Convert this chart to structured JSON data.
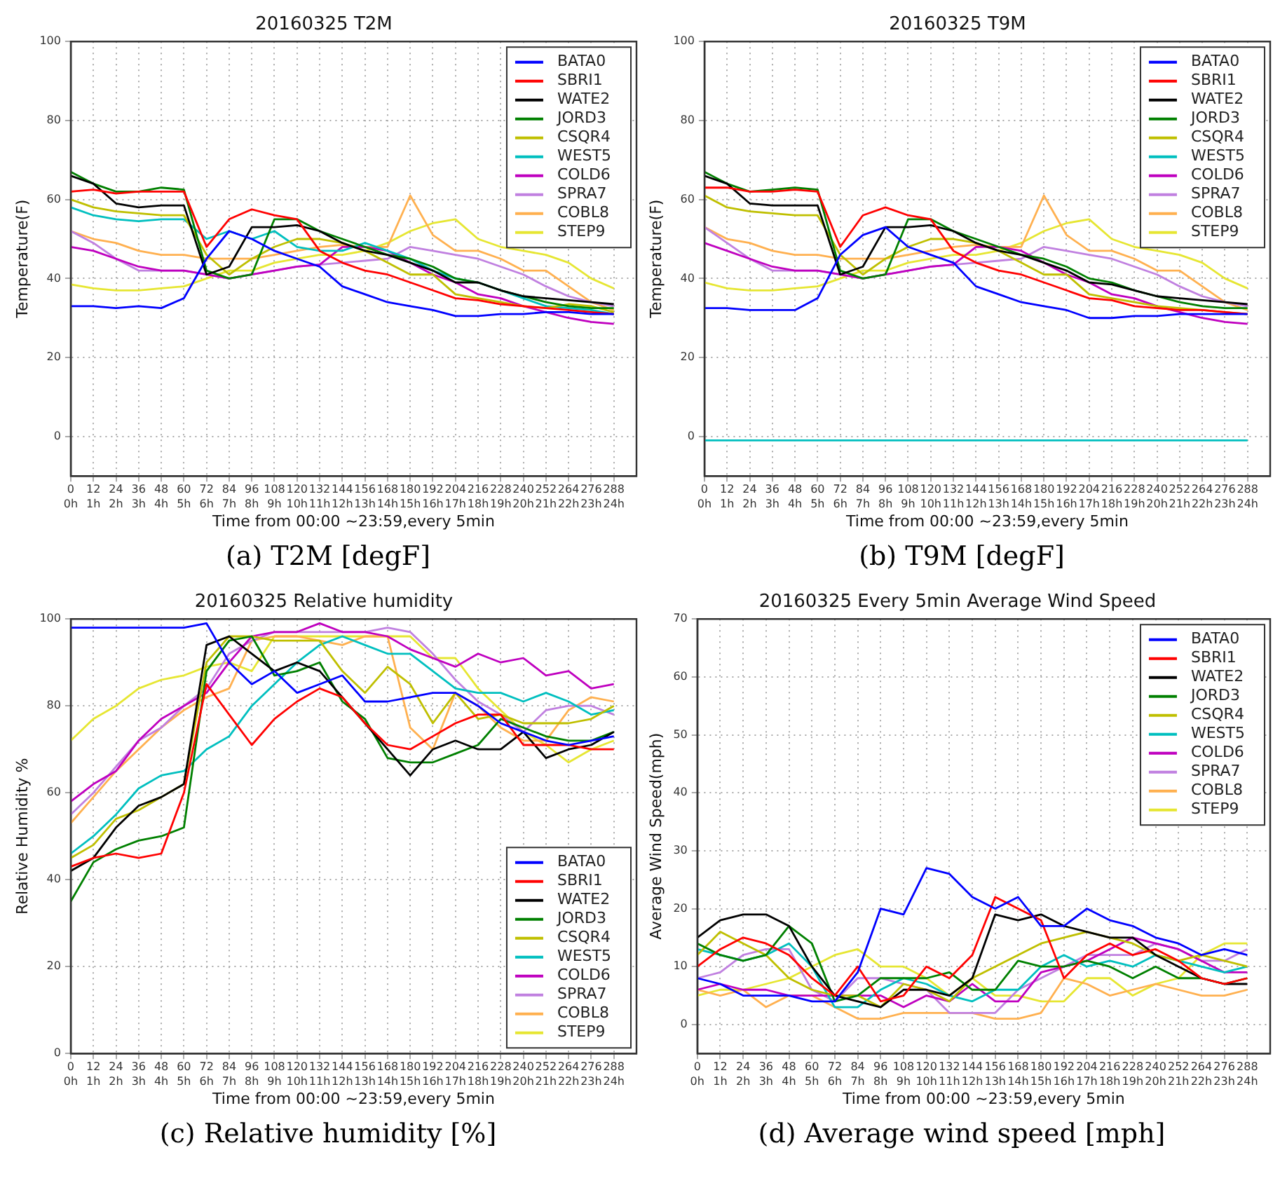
{
  "chart_data": [
    {
      "type": "line",
      "title": "20160325 T2M",
      "xlabel": "Time from 00:00 ~23:59,every 5min",
      "ylabel": "Temperature(F)",
      "annotations": [
        "(a) T2M [degF]"
      ],
      "legend": "top right",
      "grid": true,
      "xlim": [
        0,
        300
      ],
      "ylim": [
        -10,
        100
      ],
      "yticks": [
        0,
        20,
        40,
        60,
        80,
        100
      ],
      "xticks": [
        0,
        12,
        24,
        36,
        48,
        60,
        72,
        84,
        96,
        108,
        120,
        132,
        144,
        156,
        168,
        180,
        192,
        204,
        216,
        228,
        240,
        252,
        264,
        276,
        288
      ],
      "x2lim": [
        0,
        25
      ],
      "x2ticks": [
        {
          "value": 0,
          "label": "0h"
        },
        {
          "value": 1,
          "label": "1h"
        },
        {
          "value": 2,
          "label": "2h"
        },
        {
          "value": 3,
          "label": "3h"
        },
        {
          "value": 4,
          "label": "4h"
        },
        {
          "value": 5,
          "label": "5h"
        },
        {
          "value": 6,
          "label": "6h"
        },
        {
          "value": 7,
          "label": "7h"
        },
        {
          "value": 8,
          "label": "8h"
        },
        {
          "value": 9,
          "label": "9h"
        },
        {
          "value": 10,
          "label": "10h"
        },
        {
          "value": 11,
          "label": "11h"
        },
        {
          "value": 12,
          "label": "12h"
        },
        {
          "value": 13,
          "label": "13h"
        },
        {
          "value": 14,
          "label": "14h"
        },
        {
          "value": 15,
          "label": "15h"
        },
        {
          "value": 16,
          "label": "16h"
        },
        {
          "value": 17,
          "label": "17h"
        },
        {
          "value": 18,
          "label": "18h"
        },
        {
          "value": 19,
          "label": "19h"
        },
        {
          "value": 20,
          "label": "20h"
        },
        {
          "value": 21,
          "label": "21h"
        },
        {
          "value": 22,
          "label": "22h"
        },
        {
          "value": 23,
          "label": "23h"
        },
        {
          "value": 24,
          "label": "24h"
        }
      ],
      "x": [
        0,
        12,
        24,
        36,
        48,
        60,
        72,
        84,
        96,
        108,
        120,
        132,
        144,
        156,
        168,
        180,
        192,
        204,
        216,
        228,
        240,
        252,
        264,
        276,
        288
      ],
      "series": [
        {
          "name": "BATA0",
          "color": "#0000ff",
          "values": [
            33,
            33,
            32.5,
            33,
            32.5,
            35,
            45,
            52,
            50,
            47,
            45,
            43,
            38,
            36,
            34,
            33,
            32,
            30.5,
            30.5,
            31,
            31,
            31.5,
            31.5,
            31,
            31
          ]
        },
        {
          "name": "SBRI1",
          "color": "#ff0000",
          "values": [
            62,
            62.5,
            61.5,
            62,
            62,
            62,
            48,
            55,
            57.5,
            56,
            55,
            47,
            44,
            42,
            41,
            39,
            37,
            35,
            34.5,
            33.5,
            33,
            32.5,
            32,
            31.5,
            31
          ]
        },
        {
          "name": "WATE2",
          "color": "#000000",
          "values": [
            66,
            64,
            59,
            58,
            58.5,
            58.5,
            41,
            43,
            53,
            53,
            53.5,
            52,
            49,
            47,
            46,
            44,
            42,
            39,
            39,
            37,
            35.5,
            35,
            34.5,
            34,
            33.5
          ]
        },
        {
          "name": "JORD3",
          "color": "#008000",
          "values": [
            67,
            64,
            62,
            62,
            63,
            62.5,
            42,
            40,
            41,
            55,
            55,
            52,
            50,
            48,
            46,
            45,
            43,
            40,
            39,
            37,
            35.5,
            34,
            33,
            32.5,
            32.5
          ]
        },
        {
          "name": "CSQR4",
          "color": "#bfbf00",
          "values": [
            60,
            58,
            57,
            56.5,
            56,
            56,
            46,
            41,
            45,
            48,
            50,
            50,
            49,
            47,
            44,
            41,
            41,
            36,
            35,
            34,
            33,
            32.5,
            33.5,
            33,
            31.5
          ]
        },
        {
          "name": "WEST5",
          "color": "#00bfbf",
          "values": [
            58,
            56,
            55,
            54.5,
            55,
            55,
            50,
            52,
            50,
            52,
            48,
            47,
            47,
            49,
            47,
            45,
            42,
            40,
            39,
            37,
            35,
            33,
            32.5,
            32,
            31
          ]
        },
        {
          "name": "COLD6",
          "color": "#bf00bf",
          "values": [
            48,
            47,
            45,
            43,
            42,
            42,
            41,
            40,
            41,
            42,
            43,
            43.5,
            48,
            48,
            47,
            44,
            41,
            39,
            36,
            35,
            33,
            31.5,
            30,
            29,
            28.5
          ]
        },
        {
          "name": "SPRA7",
          "color": "#c080e0",
          "values": [
            52,
            49,
            45,
            42,
            42,
            42,
            41,
            40,
            41,
            42,
            43,
            43.5,
            44,
            44.5,
            45,
            48,
            47,
            46,
            45,
            43,
            41,
            38,
            35.5,
            34,
            33
          ]
        },
        {
          "name": "COBL8",
          "color": "#ffb04f",
          "values": [
            52,
            50,
            49,
            47,
            46,
            46,
            45,
            45,
            45,
            46,
            47,
            48,
            48.5,
            48,
            48,
            61,
            51,
            47,
            47,
            45,
            42,
            42,
            38,
            34,
            32
          ]
        },
        {
          "name": "STEP9",
          "color": "#e6e632",
          "values": [
            38.5,
            37.5,
            37,
            37,
            37.5,
            38,
            40,
            42,
            42,
            44,
            45,
            46,
            46,
            47,
            49,
            52,
            54,
            55,
            50,
            48,
            47,
            46,
            44,
            40,
            37.5
          ]
        }
      ]
    },
    {
      "type": "line",
      "title": "20160325 T9M",
      "xlabel": "Time from 00:00 ~23:59,every 5min",
      "ylabel": "Temperature(F)",
      "annotations": [
        "(b) T9M [degF]"
      ],
      "legend": "top right",
      "grid": true,
      "xlim": [
        0,
        300
      ],
      "ylim": [
        -10,
        100
      ],
      "yticks": [
        0,
        20,
        40,
        60,
        80,
        100
      ],
      "xticks": [
        0,
        12,
        24,
        36,
        48,
        60,
        72,
        84,
        96,
        108,
        120,
        132,
        144,
        156,
        168,
        180,
        192,
        204,
        216,
        228,
        240,
        252,
        264,
        276,
        288
      ],
      "x2lim": [
        0,
        25
      ],
      "x2ticks": [
        {
          "value": 0,
          "label": "0h"
        },
        {
          "value": 1,
          "label": "1h"
        },
        {
          "value": 2,
          "label": "2h"
        },
        {
          "value": 3,
          "label": "3h"
        },
        {
          "value": 4,
          "label": "4h"
        },
        {
          "value": 5,
          "label": "5h"
        },
        {
          "value": 6,
          "label": "6h"
        },
        {
          "value": 7,
          "label": "7h"
        },
        {
          "value": 8,
          "label": "8h"
        },
        {
          "value": 9,
          "label": "9h"
        },
        {
          "value": 10,
          "label": "10h"
        },
        {
          "value": 11,
          "label": "11h"
        },
        {
          "value": 12,
          "label": "12h"
        },
        {
          "value": 13,
          "label": "13h"
        },
        {
          "value": 14,
          "label": "14h"
        },
        {
          "value": 15,
          "label": "15h"
        },
        {
          "value": 16,
          "label": "16h"
        },
        {
          "value": 17,
          "label": "17h"
        },
        {
          "value": 18,
          "label": "18h"
        },
        {
          "value": 19,
          "label": "19h"
        },
        {
          "value": 20,
          "label": "20h"
        },
        {
          "value": 21,
          "label": "21h"
        },
        {
          "value": 22,
          "label": "22h"
        },
        {
          "value": 23,
          "label": "23h"
        },
        {
          "value": 24,
          "label": "24h"
        }
      ],
      "x": [
        0,
        12,
        24,
        36,
        48,
        60,
        72,
        84,
        96,
        108,
        120,
        132,
        144,
        156,
        168,
        180,
        192,
        204,
        216,
        228,
        240,
        252,
        264,
        276,
        288
      ],
      "series": [
        {
          "name": "BATA0",
          "color": "#0000ff",
          "values": [
            32.5,
            32.5,
            32,
            32,
            32,
            35,
            46,
            51,
            53,
            48,
            46,
            44,
            38,
            36,
            34,
            33,
            32,
            30,
            30,
            30.5,
            30.5,
            31,
            31,
            31,
            31
          ]
        },
        {
          "name": "SBRI1",
          "color": "#ff0000",
          "values": [
            63,
            63,
            62,
            62,
            62.5,
            62,
            48,
            56,
            58,
            56,
            55,
            47,
            44,
            42,
            41,
            39,
            37,
            35,
            34.5,
            33,
            32.5,
            32,
            32,
            31.5,
            31
          ]
        },
        {
          "name": "WATE2",
          "color": "#000000",
          "values": [
            66,
            64,
            59,
            58.5,
            58.5,
            58.5,
            41,
            43,
            53,
            53,
            53.5,
            52,
            49,
            47,
            46,
            44,
            42,
            39,
            38.5,
            37,
            35.5,
            35,
            34.5,
            34,
            33.5
          ]
        },
        {
          "name": "JORD3",
          "color": "#008000",
          "values": [
            67,
            64,
            62,
            62.5,
            63,
            62.5,
            42,
            40,
            41,
            55,
            55,
            52,
            50,
            48,
            46,
            45,
            43,
            40,
            39,
            37,
            35.5,
            34,
            33,
            32.5,
            32.5
          ]
        },
        {
          "name": "CSQR4",
          "color": "#bfbf00",
          "values": [
            61,
            58,
            57,
            56.5,
            56,
            56,
            46,
            41,
            45,
            48,
            50,
            50,
            49,
            47,
            44,
            41,
            41,
            36,
            35,
            34,
            33,
            32.5,
            32,
            31.5,
            31
          ]
        },
        {
          "name": "WEST5",
          "color": "#00bfbf",
          "values": [
            -1,
            -1,
            -1,
            -1,
            -1,
            -1,
            -1,
            -1,
            -1,
            -1,
            -1,
            -1,
            -1,
            -1,
            -1,
            -1,
            -1,
            -1,
            -1,
            -1,
            -1,
            -1,
            -1,
            -1,
            -1
          ]
        },
        {
          "name": "COLD6",
          "color": "#bf00bf",
          "values": [
            49,
            47,
            45,
            43,
            42,
            42,
            41,
            40,
            41,
            42,
            43,
            43.5,
            48,
            48,
            47,
            44,
            41,
            39,
            36,
            35,
            33,
            31.5,
            30,
            29,
            28.5
          ]
        },
        {
          "name": "SPRA7",
          "color": "#c080e0",
          "values": [
            53,
            49,
            45,
            42,
            42,
            42,
            41,
            40,
            41,
            42,
            43,
            43.5,
            44,
            44.5,
            45,
            48,
            47,
            46,
            45,
            43,
            41,
            38,
            35.5,
            34,
            33
          ]
        },
        {
          "name": "COBL8",
          "color": "#ffb04f",
          "values": [
            53,
            50,
            49,
            47,
            46,
            46,
            45,
            45,
            45,
            46,
            47,
            48,
            48.5,
            48,
            48,
            61,
            51,
            47,
            47,
            45,
            42,
            42,
            38,
            34,
            32
          ]
        },
        {
          "name": "STEP9",
          "color": "#e6e632",
          "values": [
            39,
            37.5,
            37,
            37,
            37.5,
            38,
            40,
            42,
            42,
            44,
            45,
            46,
            46,
            47,
            49,
            52,
            54,
            55,
            50,
            48,
            47,
            46,
            44,
            40,
            37.5
          ]
        }
      ]
    },
    {
      "type": "line",
      "title": "20160325 Relative humidity",
      "xlabel": "Time from 00:00 ~23:59,every 5min",
      "ylabel": "Relative Humidity %",
      "annotations": [
        "(c) Relative humidity [%]"
      ],
      "legend": "bottom right",
      "grid": true,
      "xlim": [
        0,
        300
      ],
      "ylim": [
        0,
        100
      ],
      "yticks": [
        0,
        20,
        40,
        60,
        80,
        100
      ],
      "xticks": [
        0,
        12,
        24,
        36,
        48,
        60,
        72,
        84,
        96,
        108,
        120,
        132,
        144,
        156,
        168,
        180,
        192,
        204,
        216,
        228,
        240,
        252,
        264,
        276,
        288
      ],
      "x2lim": [
        0,
        25
      ],
      "x2ticks": [
        {
          "value": 0,
          "label": "0h"
        },
        {
          "value": 1,
          "label": "1h"
        },
        {
          "value": 2,
          "label": "2h"
        },
        {
          "value": 3,
          "label": "3h"
        },
        {
          "value": 4,
          "label": "4h"
        },
        {
          "value": 5,
          "label": "5h"
        },
        {
          "value": 6,
          "label": "6h"
        },
        {
          "value": 7,
          "label": "7h"
        },
        {
          "value": 8,
          "label": "8h"
        },
        {
          "value": 9,
          "label": "9h"
        },
        {
          "value": 10,
          "label": "10h"
        },
        {
          "value": 11,
          "label": "11h"
        },
        {
          "value": 12,
          "label": "12h"
        },
        {
          "value": 13,
          "label": "13h"
        },
        {
          "value": 14,
          "label": "14h"
        },
        {
          "value": 15,
          "label": "15h"
        },
        {
          "value": 16,
          "label": "16h"
        },
        {
          "value": 17,
          "label": "17h"
        },
        {
          "value": 18,
          "label": "18h"
        },
        {
          "value": 19,
          "label": "19h"
        },
        {
          "value": 20,
          "label": "20h"
        },
        {
          "value": 21,
          "label": "21h"
        },
        {
          "value": 22,
          "label": "22h"
        },
        {
          "value": 23,
          "label": "23h"
        },
        {
          "value": 24,
          "label": "24h"
        }
      ],
      "x": [
        0,
        12,
        24,
        36,
        48,
        60,
        72,
        84,
        96,
        108,
        120,
        132,
        144,
        156,
        168,
        180,
        192,
        204,
        216,
        228,
        240,
        252,
        264,
        276,
        288
      ],
      "series": [
        {
          "name": "BATA0",
          "color": "#0000ff",
          "values": [
            98,
            98,
            98,
            98,
            98,
            98,
            99,
            90,
            85,
            88,
            83,
            85,
            87,
            81,
            81,
            82,
            83,
            83,
            80,
            76,
            74,
            72,
            71,
            72,
            73
          ]
        },
        {
          "name": "SBRI1",
          "color": "#ff0000",
          "values": [
            43,
            45,
            46,
            45,
            46,
            60,
            85,
            78,
            71,
            77,
            81,
            84,
            82,
            76,
            71,
            70,
            73,
            76,
            78,
            78,
            71,
            71,
            71,
            70,
            70
          ]
        },
        {
          "name": "WATE2",
          "color": "#000000",
          "values": [
            42,
            45,
            52,
            57,
            59,
            62,
            94,
            96,
            92,
            88,
            90,
            88,
            82,
            76,
            70,
            64,
            70,
            72,
            70,
            70,
            74,
            68,
            70,
            71,
            74
          ]
        },
        {
          "name": "JORD3",
          "color": "#008000",
          "values": [
            35,
            44,
            47,
            49,
            50,
            52,
            88,
            95,
            96,
            87,
            88,
            90,
            81,
            77,
            68,
            67,
            67,
            69,
            71,
            77,
            75,
            73,
            72,
            72,
            74
          ]
        },
        {
          "name": "CSQR4",
          "color": "#bfbf00",
          "values": [
            45,
            48,
            54,
            56,
            59,
            62,
            90,
            96,
            96,
            95,
            95,
            95,
            88,
            83,
            89,
            85,
            76,
            83,
            77,
            78,
            76,
            76,
            76,
            77,
            80
          ]
        },
        {
          "name": "WEST5",
          "color": "#00bfbf",
          "values": [
            46,
            50,
            55,
            61,
            64,
            65,
            70,
            73,
            80,
            85,
            90,
            94,
            96,
            94,
            92,
            92,
            88,
            84,
            83,
            83,
            81,
            83,
            81,
            78,
            79
          ]
        },
        {
          "name": "COLD6",
          "color": "#bf00bf",
          "values": [
            58,
            62,
            65,
            72,
            77,
            80,
            83,
            90,
            96,
            97,
            97,
            99,
            97,
            97,
            96,
            93,
            91,
            89,
            92,
            90,
            91,
            87,
            88,
            84,
            85
          ]
        },
        {
          "name": "SPRA7",
          "color": "#c080e0",
          "values": [
            55,
            60,
            66,
            72,
            75,
            80,
            84,
            92,
            95,
            97,
            97,
            97,
            97,
            97,
            98,
            97,
            92,
            86,
            81,
            78,
            74,
            79,
            80,
            80,
            78
          ]
        },
        {
          "name": "COBL8",
          "color": "#ffb04f",
          "values": [
            53,
            59,
            65,
            70,
            75,
            79,
            82,
            84,
            95,
            96,
            96,
            95,
            94,
            96,
            96,
            75,
            70,
            83,
            80,
            75,
            72,
            72,
            79,
            82,
            81
          ]
        },
        {
          "name": "STEP9",
          "color": "#e6e632",
          "values": [
            72,
            77,
            80,
            84,
            86,
            87,
            89,
            90,
            88,
            96,
            96,
            96,
            96,
            96,
            96,
            96,
            91,
            91,
            84,
            79,
            74,
            71,
            67,
            70,
            72
          ]
        }
      ]
    },
    {
      "type": "line",
      "title": "20160325 Every 5min Average Wind Speed",
      "xlabel": "Time from 00:00 ~23:59,every 5min",
      "ylabel": "Average Wind Speed(mph)",
      "annotations": [
        "(d) Average wind speed [mph]"
      ],
      "legend": "top right",
      "grid": true,
      "xlim": [
        0,
        300
      ],
      "ylim": [
        -5,
        70
      ],
      "yticks": [
        0,
        10,
        20,
        30,
        40,
        50,
        60,
        70
      ],
      "xticks": [
        0,
        12,
        24,
        36,
        48,
        60,
        72,
        84,
        96,
        108,
        120,
        132,
        144,
        156,
        168,
        180,
        192,
        204,
        216,
        228,
        240,
        252,
        264,
        276,
        288
      ],
      "x2lim": [
        0,
        25
      ],
      "x2ticks": [
        {
          "value": 0,
          "label": "0h"
        },
        {
          "value": 1,
          "label": "1h"
        },
        {
          "value": 2,
          "label": "2h"
        },
        {
          "value": 3,
          "label": "3h"
        },
        {
          "value": 4,
          "label": "4h"
        },
        {
          "value": 5,
          "label": "5h"
        },
        {
          "value": 6,
          "label": "6h"
        },
        {
          "value": 7,
          "label": "7h"
        },
        {
          "value": 8,
          "label": "8h"
        },
        {
          "value": 9,
          "label": "9h"
        },
        {
          "value": 10,
          "label": "10h"
        },
        {
          "value": 11,
          "label": "11h"
        },
        {
          "value": 12,
          "label": "12h"
        },
        {
          "value": 13,
          "label": "13h"
        },
        {
          "value": 14,
          "label": "14h"
        },
        {
          "value": 15,
          "label": "15h"
        },
        {
          "value": 16,
          "label": "16h"
        },
        {
          "value": 17,
          "label": "17h"
        },
        {
          "value": 18,
          "label": "18h"
        },
        {
          "value": 19,
          "label": "19h"
        },
        {
          "value": 20,
          "label": "20h"
        },
        {
          "value": 21,
          "label": "21h"
        },
        {
          "value": 22,
          "label": "22h"
        },
        {
          "value": 23,
          "label": "23h"
        },
        {
          "value": 24,
          "label": "24h"
        }
      ],
      "x": [
        0,
        12,
        24,
        36,
        48,
        60,
        72,
        84,
        96,
        108,
        120,
        132,
        144,
        156,
        168,
        180,
        192,
        204,
        216,
        228,
        240,
        252,
        264,
        276,
        288
      ],
      "series": [
        {
          "name": "BATA0",
          "color": "#0000ff",
          "values": [
            8,
            7,
            5,
            5,
            5,
            4,
            4,
            9,
            20,
            19,
            27,
            26,
            22,
            20,
            22,
            17,
            17,
            20,
            18,
            17,
            15,
            14,
            12,
            13,
            12
          ]
        },
        {
          "name": "SBRI1",
          "color": "#ff0000",
          "values": [
            10,
            13,
            15,
            14,
            12,
            8,
            5,
            10,
            4,
            5,
            10,
            8,
            12,
            22,
            20,
            18,
            8,
            12,
            14,
            12,
            13,
            11,
            8,
            7,
            8
          ]
        },
        {
          "name": "WATE2",
          "color": "#000000",
          "values": [
            15,
            18,
            19,
            19,
            17,
            10,
            5,
            4,
            3,
            6,
            6,
            5,
            8,
            19,
            18,
            19,
            17,
            16,
            15,
            15,
            12,
            10,
            8,
            7,
            7
          ]
        },
        {
          "name": "JORD3",
          "color": "#008000",
          "values": [
            14,
            12,
            11,
            12,
            17,
            14,
            4,
            5,
            8,
            8,
            8,
            9,
            6,
            6,
            11,
            10,
            10,
            11,
            10,
            8,
            10,
            8,
            8,
            7,
            8
          ]
        },
        {
          "name": "CSQR4",
          "color": "#bfbf00",
          "values": [
            12,
            16,
            14,
            12,
            8,
            6,
            5,
            5,
            3,
            7,
            6,
            4,
            8,
            10,
            12,
            14,
            15,
            16,
            15,
            14,
            12,
            11,
            12,
            11,
            10
          ]
        },
        {
          "name": "WEST5",
          "color": "#00bfbf",
          "values": [
            13,
            12,
            11,
            12,
            14,
            10,
            3,
            3,
            6,
            8,
            7,
            5,
            4,
            6,
            6,
            10,
            12,
            10,
            11,
            10,
            12,
            11,
            10,
            9,
            10
          ]
        },
        {
          "name": "COLD6",
          "color": "#bf00bf",
          "values": [
            6,
            7,
            6,
            6,
            5,
            5,
            5,
            5,
            5,
            3,
            5,
            4,
            7,
            4,
            4,
            9,
            10,
            11,
            13,
            15,
            14,
            13,
            11,
            9,
            9
          ]
        },
        {
          "name": "SPRA7",
          "color": "#c080e0",
          "values": [
            8,
            9,
            12,
            13,
            13,
            6,
            4,
            8,
            8,
            7,
            6,
            2,
            2,
            2,
            6,
            8,
            10,
            12,
            12,
            12,
            14,
            13,
            11,
            11,
            13
          ]
        },
        {
          "name": "COBL8",
          "color": "#ffb04f",
          "values": [
            6,
            5,
            6,
            3,
            5,
            5,
            3,
            1,
            1,
            2,
            2,
            2,
            2,
            1,
            1,
            2,
            8,
            7,
            5,
            6,
            7,
            6,
            5,
            5,
            6
          ]
        },
        {
          "name": "STEP9",
          "color": "#e6e632",
          "values": [
            5,
            6,
            6,
            7,
            8,
            10,
            12,
            13,
            10,
            10,
            8,
            5,
            8,
            5,
            5,
            4,
            4,
            8,
            8,
            5,
            7,
            8,
            12,
            14,
            14
          ]
        }
      ]
    }
  ]
}
